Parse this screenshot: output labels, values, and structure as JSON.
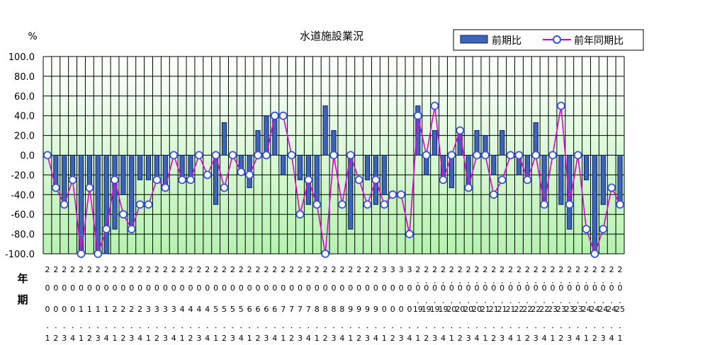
{
  "chart_data": {
    "type": "bar",
    "title": "水道施設業況",
    "ylabel": "%",
    "ylim": [
      -100,
      100
    ],
    "ytick_step": 20,
    "yticks": [
      "100.0",
      "80.0",
      "60.0",
      "40.0",
      "20.0",
      "0.0",
      "-20.0",
      "-40.0",
      "-60.0",
      "-80.0",
      "-100.0"
    ],
    "row_labels": [
      "年",
      "期"
    ],
    "legend_position": "top-right",
    "grid": true,
    "colors": {
      "bar_fill": "#3d64b5",
      "bar_stroke": "#0a1f6e",
      "line": "#e000d8",
      "marker": "#3355dd",
      "plot_top": "#ffffff",
      "plot_bottom": "#b6f2b0"
    },
    "categories": [
      "2001",
      "2002",
      "2003",
      "2004",
      "2011",
      "2012",
      "2013",
      "2014",
      "2021",
      "2022",
      "2023",
      "2024",
      "2031",
      "2032",
      "2033",
      "2034",
      "2041",
      "2042",
      "2043",
      "2044",
      "2051",
      "2052",
      "2053",
      "2054",
      "2061",
      "2062",
      "2063",
      "2064",
      "2071",
      "2072",
      "2073",
      "2074",
      "2081",
      "2082",
      "2083",
      "2084",
      "2091",
      "2092",
      "2093",
      "2094",
      "3001",
      "3002",
      "3003",
      "3004",
      "2019.1",
      "2019.2",
      "2019.3",
      "2019.4",
      "2020.1",
      "2020.2",
      "2020.3",
      "2020.4",
      "2021.1",
      "2021.2",
      "2021.3",
      "2021.4",
      "2022.1",
      "2022.2",
      "2022.3",
      "2022.4",
      "2023.1",
      "2023.2",
      "2023.3",
      "2023.4",
      "2024.1",
      "2024.2",
      "2024.3",
      "2024.4",
      "2025.1"
    ],
    "series": [
      {
        "name": "前期比",
        "values": [
          0,
          -33,
          -50,
          -25,
          -100,
          -33,
          -100,
          -100,
          -75,
          -40,
          -75,
          -25,
          -25,
          -25,
          -33,
          0,
          -25,
          -25,
          0,
          0,
          -50,
          33,
          0,
          -20,
          -33,
          25,
          40,
          40,
          -20,
          0,
          -25,
          -50,
          -50,
          50,
          25,
          0,
          -75,
          0,
          -25,
          -50,
          -40,
          0,
          0,
          0,
          50,
          -20,
          25,
          -25,
          -33,
          25,
          -33,
          25,
          20,
          -20,
          25,
          0,
          -20,
          -25,
          33,
          -50,
          0,
          -50,
          -75,
          0,
          -25,
          -100,
          -50,
          0,
          -50
        ]
      },
      {
        "name": "前年同期比",
        "values": [
          0,
          -33,
          -50,
          -25,
          -100,
          -33,
          -100,
          -75,
          -25,
          -60,
          -75,
          -50,
          -50,
          -25,
          -33,
          0,
          -25,
          -25,
          0,
          -20,
          0,
          -33,
          0,
          -17,
          -20,
          0,
          0,
          40,
          40,
          0,
          -60,
          -25,
          -50,
          -100,
          0,
          -50,
          0,
          -25,
          -50,
          -25,
          -50,
          -40,
          -40,
          -80,
          40,
          0,
          50,
          -25,
          0,
          25,
          -33,
          0,
          0,
          -40,
          -25,
          0,
          0,
          -25,
          0,
          -50,
          0,
          50,
          -50,
          0,
          -75,
          -100,
          -75,
          -33,
          -50
        ]
      }
    ]
  }
}
